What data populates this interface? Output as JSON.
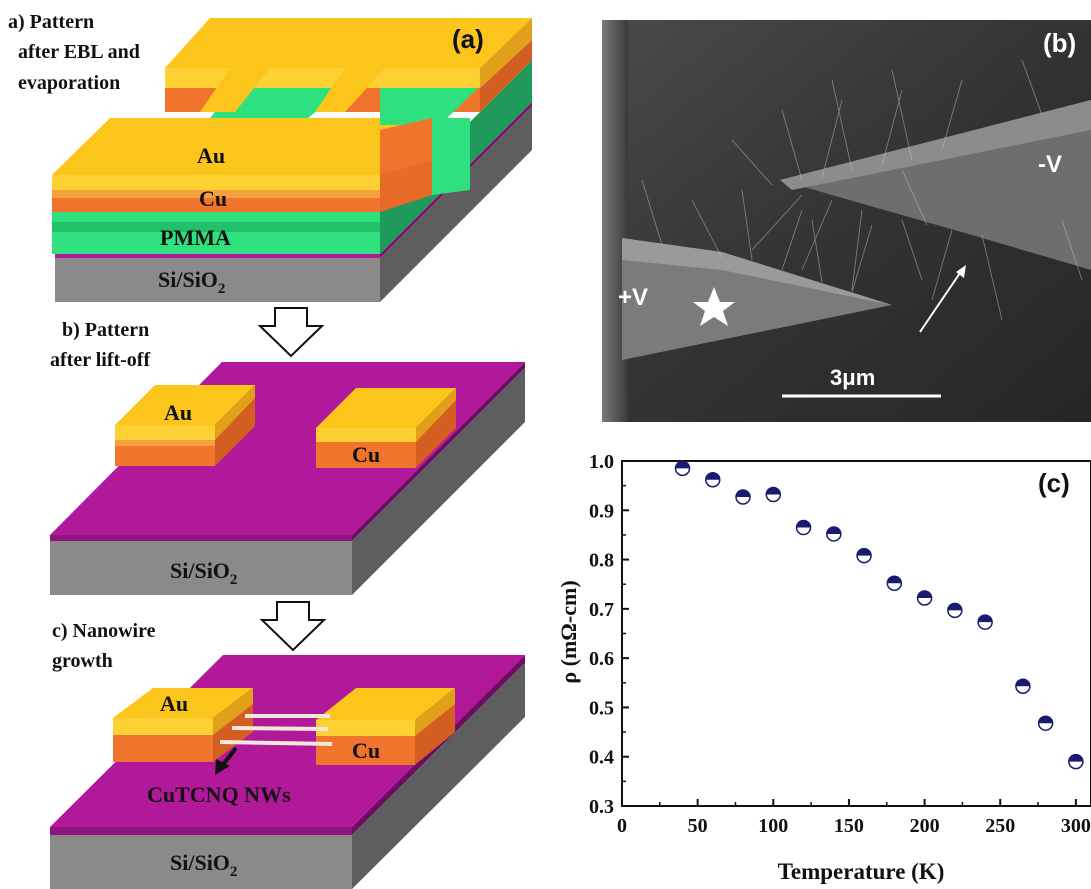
{
  "panel_a": {
    "step_a_label": "a)   Pattern",
    "step_a_line2": "after EBL and",
    "step_a_line3": "evaporation",
    "panel_tag": "(a)",
    "layer_au": "Au",
    "layer_cu": "Cu",
    "layer_pmma": "PMMA",
    "substrate": "Si/SiO",
    "substrate_sub": "2",
    "step_b_label": "b)     Pattern",
    "step_b_line2": "after lift-off",
    "b_au": "Au",
    "b_cu": "Cu",
    "b_substrate": "Si/SiO",
    "b_substrate_sub": "2",
    "step_c_label": "c)    Nanowire",
    "step_c_line2": "growth",
    "c_au": "Au",
    "c_cu": "Cu",
    "c_nw_label": "CuTCNQ NWs",
    "c_substrate": "Si/SiO",
    "c_substrate_sub": "2",
    "colors": {
      "au": "#FDD133",
      "cu": "#F0742C",
      "pmma": "#2EE07E",
      "si": "#8A8A8A",
      "sio2": "#B2189A"
    }
  },
  "panel_b": {
    "panel_tag": "(b)",
    "label_minus": "-V",
    "label_plus": "+V",
    "scale_bar": "3μm",
    "star_icon": "star-icon"
  },
  "chart_data": {
    "type": "scatter",
    "panel_tag": "(c)",
    "xlabel": "Temperature (K)",
    "ylabel_symbol": "ρ",
    "ylabel_unit": "(mΩ-cm)",
    "xlim": [
      0,
      310
    ],
    "ylim": [
      0.3,
      1.0
    ],
    "xticks": [
      "0",
      "50",
      "100",
      "150",
      "200",
      "250",
      "300"
    ],
    "yticks": [
      "0.3",
      "0.4",
      "0.5",
      "0.6",
      "0.7",
      "0.8",
      "0.9",
      "1.0"
    ],
    "x": [
      40,
      60,
      80,
      100,
      120,
      140,
      160,
      180,
      200,
      220,
      240,
      265,
      280,
      300
    ],
    "y": [
      0.985,
      0.962,
      0.927,
      0.932,
      0.865,
      0.852,
      0.808,
      0.752,
      0.722,
      0.697,
      0.673,
      0.543,
      0.468,
      0.39
    ],
    "marker_color": "#1A1A6E"
  }
}
